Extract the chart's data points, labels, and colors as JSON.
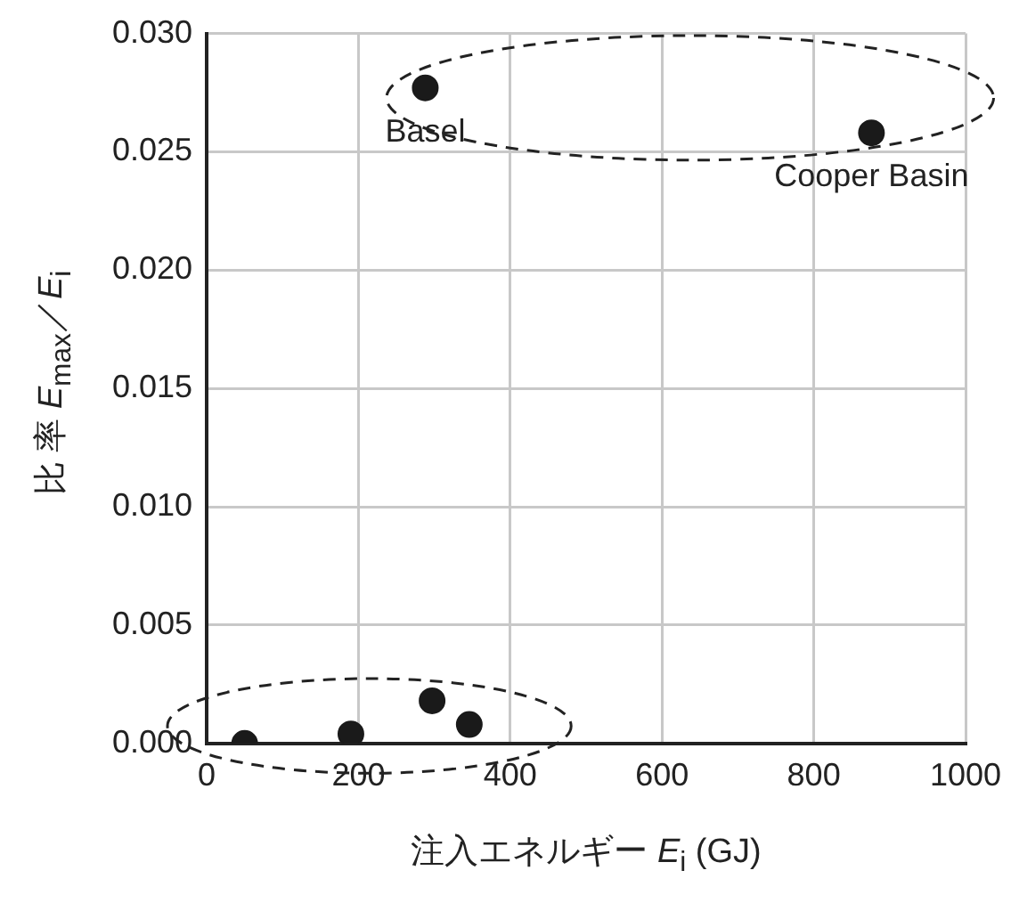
{
  "chart_data": {
    "type": "scatter",
    "xlabel": "注入エネルギー E$_{i}$ (GJ)",
    "ylabel": "比 率 E$_{max}$／E$_{i}$",
    "x": [
      50,
      190,
      297,
      346,
      288,
      876
    ],
    "values": [
      0,
      0.0004,
      0.0018,
      0.0008,
      0.0277,
      0.0258
    ],
    "color": "#1a1a1a",
    "xlim": [
      0,
      1000
    ],
    "xticks": [
      0,
      200,
      400,
      600,
      800,
      1000
    ],
    "ylim": [
      0,
      0.03
    ],
    "yticks": [
      {
        "value": 0,
        "label": "0.000"
      },
      0.005,
      {
        "value": 0.01,
        "label": "0.010"
      },
      0.015,
      {
        "value": 0.02,
        "label": "0.020"
      },
      0.025,
      {
        "value": 0.03,
        "label": "0.030"
      }
    ],
    "grid": true,
    "legend": false,
    "marker": "circle",
    "annotations": [
      {
        "text": "Basel",
        "x": 288,
        "y": 0.0277
      },
      {
        "text": "Cooper Basin",
        "x": 876,
        "y": 0.0258
      }
    ]
  }
}
